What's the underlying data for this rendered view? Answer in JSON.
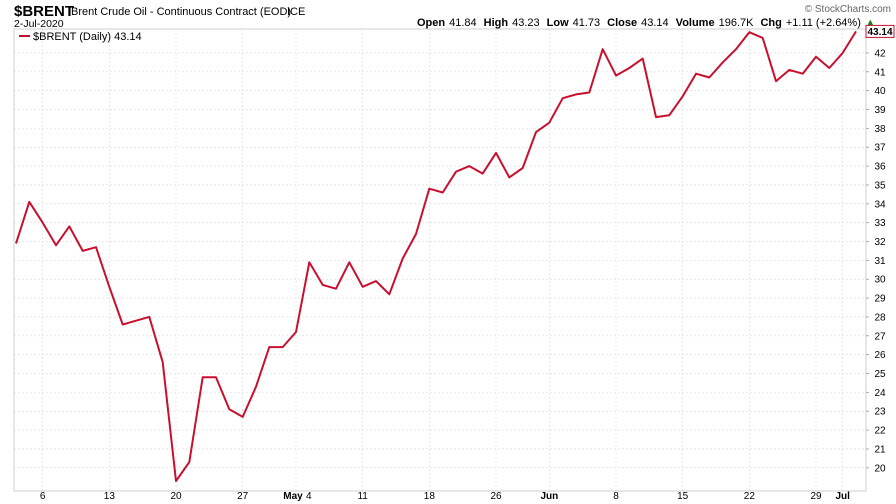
{
  "header": {
    "symbol": "$BRENT",
    "name": "Brent Crude Oil - Continuous Contract (EOD)",
    "exchange": "ICE",
    "date": "2-Jul-2020",
    "watermark": "© StockCharts.com",
    "stats": [
      {
        "label": "Open",
        "value": "41.84"
      },
      {
        "label": "High",
        "value": "43.23"
      },
      {
        "label": "Low",
        "value": "41.73"
      },
      {
        "label": "Close",
        "value": "43.14"
      },
      {
        "label": "Volume",
        "value": "196.7K"
      },
      {
        "label": "Chg",
        "value": "+1.11 (+2.64%)"
      }
    ],
    "chg_arrow": "▲"
  },
  "legend": {
    "label": "$BRENT (Daily) 43.14"
  },
  "last_value_label": "43.14",
  "colors": {
    "line": "#c8102e",
    "grid": "#d9d9d9",
    "frame": "#cfcfcf",
    "up_arrow": "#1a7f1a"
  },
  "chart_data": {
    "type": "line",
    "series": [
      {
        "name": "$BRENT (Daily)",
        "values": [
          31.9,
          34.1,
          33.0,
          31.8,
          32.8,
          31.5,
          31.7,
          29.6,
          27.6,
          27.8,
          28.0,
          25.6,
          19.3,
          20.3,
          24.8,
          24.8,
          23.1,
          22.7,
          24.3,
          26.4,
          26.4,
          27.2,
          30.9,
          29.7,
          29.5,
          30.9,
          29.6,
          29.9,
          29.2,
          31.1,
          32.4,
          34.8,
          34.6,
          35.7,
          36.0,
          35.6,
          36.7,
          35.4,
          35.9,
          37.8,
          38.3,
          39.6,
          39.8,
          39.9,
          42.2,
          40.8,
          41.2,
          41.7,
          38.6,
          38.7,
          39.7,
          40.9,
          40.7,
          41.5,
          42.2,
          43.1,
          42.8,
          40.5,
          41.1,
          40.9,
          41.8,
          41.2,
          42.0,
          43.14
        ]
      }
    ],
    "x_ticks": [
      {
        "label": "6",
        "index": 2,
        "bold": false
      },
      {
        "label": "13",
        "index": 7,
        "bold": false
      },
      {
        "label": "20",
        "index": 12,
        "bold": false
      },
      {
        "label": "27",
        "index": 17,
        "bold": false
      },
      {
        "label": "May",
        "index": 21,
        "bold": true
      },
      {
        "label": "4",
        "index": 21.6,
        "bold": false
      },
      {
        "label": "11",
        "index": 26,
        "bold": false
      },
      {
        "label": "18",
        "index": 31,
        "bold": false
      },
      {
        "label": "26",
        "index": 36,
        "bold": false
      },
      {
        "label": "Jun",
        "index": 40,
        "bold": true
      },
      {
        "label": "8",
        "index": 45,
        "bold": false
      },
      {
        "label": "15",
        "index": 50,
        "bold": false
      },
      {
        "label": "22",
        "index": 55,
        "bold": false
      },
      {
        "label": "29",
        "index": 60,
        "bold": false
      },
      {
        "label": "Jul",
        "index": 62,
        "bold": true
      }
    ],
    "y_ticks": [
      20,
      21,
      22,
      23,
      24,
      25,
      26,
      27,
      28,
      29,
      30,
      31,
      32,
      33,
      34,
      35,
      36,
      37,
      38,
      39,
      40,
      41,
      42
    ],
    "ylim": [
      19.3,
      43.8
    ],
    "grid": true,
    "legend_position": "top-left"
  }
}
